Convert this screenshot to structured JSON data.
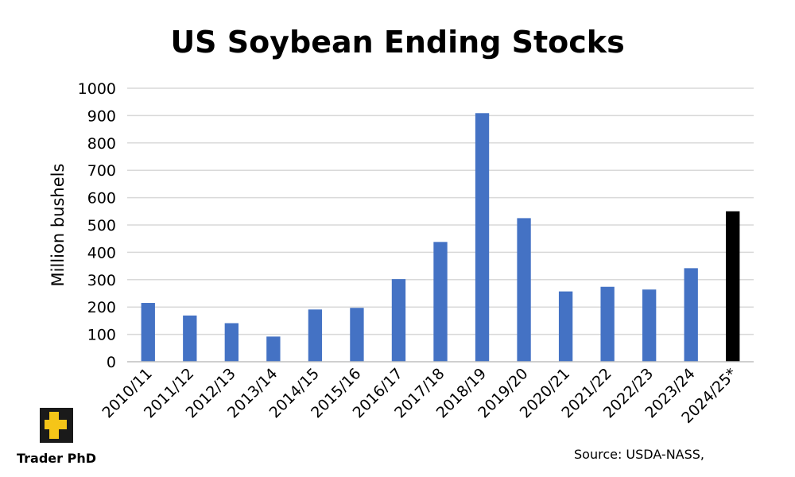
{
  "chart_data": {
    "type": "bar",
    "title": "US Soybean Ending Stocks",
    "ylabel": "Million bushels",
    "xlabel": "",
    "categories": [
      "2010/11",
      "2011/12",
      "2012/13",
      "2013/14",
      "2014/15",
      "2015/16",
      "2016/17",
      "2017/18",
      "2018/19",
      "2019/20",
      "2020/21",
      "2021/22",
      "2022/23",
      "2023/24",
      "2024/25*"
    ],
    "values": [
      215,
      169,
      141,
      92,
      191,
      197,
      302,
      438,
      909,
      525,
      257,
      274,
      264,
      342,
      550
    ],
    "ylim": [
      0,
      1000
    ],
    "yticks": [
      0,
      100,
      200,
      300,
      400,
      500,
      600,
      700,
      800,
      900,
      1000
    ],
    "grid": true,
    "bar_color": "#4472C4",
    "highlight_color": "#000000",
    "highlight_category": "2024/25*"
  },
  "source": "Source: USDA-NASS,",
  "brand": {
    "name": "Trader PhD",
    "icon": "trader-phd-logo-icon",
    "logo_colors": [
      "#1a1a1a",
      "#F5C518"
    ]
  }
}
